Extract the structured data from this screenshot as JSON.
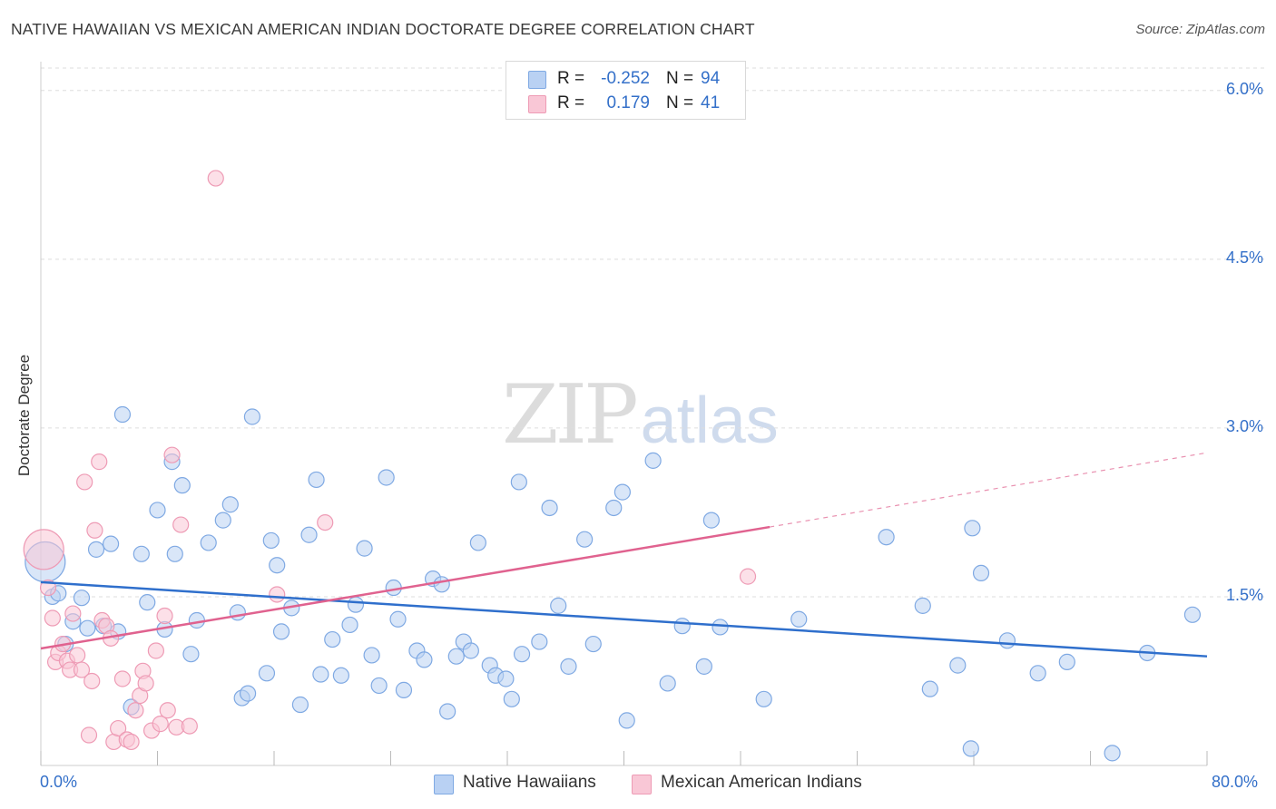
{
  "header": {
    "title": "NATIVE HAWAIIAN VS MEXICAN AMERICAN INDIAN DOCTORATE DEGREE CORRELATION CHART",
    "source": "Source: ZipAtlas.com"
  },
  "watermark": {
    "zip": "ZIP",
    "atlas": "atlas"
  },
  "legend": {
    "rows": [
      {
        "r_label": "R =",
        "r_value": "-0.252",
        "n_label": "N =",
        "n_value": "94"
      },
      {
        "r_label": "R =",
        "r_value": "0.179",
        "n_label": "N =",
        "n_value": "41"
      }
    ]
  },
  "bottom_legend": [
    "Native Hawaiians",
    "Mexican American Indians"
  ],
  "colors": {
    "blue_fill": "#b9d1f3",
    "blue_stroke": "#7fa9e3",
    "blue_line": "#2f6fcc",
    "pink_fill": "#f9c7d6",
    "pink_stroke": "#ee9bb5",
    "pink_line": "#e0628f",
    "axis_text": "#3470c9",
    "grid": "#dddddd"
  },
  "chart_data": {
    "type": "scatter",
    "title": "NATIVE HAWAIIAN VS MEXICAN AMERICAN INDIAN DOCTORATE DEGREE CORRELATION CHART",
    "xlabel": "",
    "ylabel": "Doctorate Degree",
    "xlim": [
      0,
      80
    ],
    "ylim": [
      0,
      6.2
    ],
    "x_tick_labels": [
      "0.0%",
      "80.0%"
    ],
    "y_ticks": [
      1.5,
      3.0,
      4.5,
      6.0
    ],
    "y_tick_labels": [
      "1.5%",
      "3.0%",
      "4.5%",
      "6.0%"
    ],
    "grid": "horizontal dashed",
    "legend_position": "top-center",
    "series": [
      {
        "name": "Native Hawaiians",
        "r": -0.252,
        "n": 94,
        "trend": {
          "x": [
            0,
            80
          ],
          "y": [
            1.63,
            0.97
          ],
          "dashed_from_x": null
        },
        "points": [
          [
            0.3,
            1.81,
            "big"
          ],
          [
            0.8,
            1.5
          ],
          [
            1.2,
            1.53
          ],
          [
            1.7,
            1.08
          ],
          [
            2.2,
            1.28
          ],
          [
            2.8,
            1.49
          ],
          [
            3.2,
            1.22
          ],
          [
            3.8,
            1.92
          ],
          [
            4.3,
            1.24
          ],
          [
            4.8,
            1.97
          ],
          [
            5.3,
            1.19
          ],
          [
            5.6,
            3.12
          ],
          [
            6.2,
            0.52
          ],
          [
            6.9,
            1.88
          ],
          [
            7.3,
            1.45
          ],
          [
            8.0,
            2.27
          ],
          [
            8.5,
            1.21
          ],
          [
            9.0,
            2.7
          ],
          [
            9.2,
            1.88
          ],
          [
            9.7,
            2.49
          ],
          [
            10.3,
            0.99
          ],
          [
            10.7,
            1.29
          ],
          [
            11.5,
            1.98
          ],
          [
            12.5,
            2.18
          ],
          [
            13.0,
            2.32
          ],
          [
            13.5,
            1.36
          ],
          [
            13.8,
            0.6
          ],
          [
            14.2,
            0.64
          ],
          [
            14.5,
            3.1
          ],
          [
            15.5,
            0.82
          ],
          [
            15.8,
            2.0
          ],
          [
            16.2,
            1.78
          ],
          [
            16.5,
            1.19
          ],
          [
            17.2,
            1.4
          ],
          [
            17.8,
            0.54
          ],
          [
            18.4,
            2.05
          ],
          [
            18.9,
            2.54
          ],
          [
            19.2,
            0.81
          ],
          [
            20.0,
            1.12
          ],
          [
            20.6,
            0.8
          ],
          [
            21.2,
            1.25
          ],
          [
            21.6,
            1.43
          ],
          [
            22.2,
            1.93
          ],
          [
            22.7,
            0.98
          ],
          [
            23.2,
            0.71
          ],
          [
            23.7,
            2.56
          ],
          [
            24.2,
            1.58
          ],
          [
            24.5,
            1.3
          ],
          [
            24.9,
            0.67
          ],
          [
            25.8,
            1.02
          ],
          [
            26.3,
            0.94
          ],
          [
            26.9,
            1.66
          ],
          [
            27.5,
            1.61
          ],
          [
            27.9,
            0.48
          ],
          [
            28.5,
            0.97
          ],
          [
            29.0,
            1.1
          ],
          [
            29.5,
            1.02
          ],
          [
            30.0,
            1.98
          ],
          [
            30.8,
            0.89
          ],
          [
            31.2,
            0.8
          ],
          [
            31.9,
            0.77
          ],
          [
            32.3,
            0.59
          ],
          [
            32.8,
            2.52
          ],
          [
            33.0,
            0.99
          ],
          [
            34.2,
            1.1
          ],
          [
            34.9,
            2.29
          ],
          [
            35.5,
            1.42
          ],
          [
            36.2,
            0.88
          ],
          [
            37.3,
            2.01
          ],
          [
            37.9,
            1.08
          ],
          [
            39.3,
            2.29
          ],
          [
            39.9,
            2.43
          ],
          [
            40.2,
            0.4
          ],
          [
            42.0,
            2.71
          ],
          [
            43.0,
            0.73
          ],
          [
            44.0,
            1.24
          ],
          [
            45.5,
            0.88
          ],
          [
            46.0,
            2.18
          ],
          [
            46.6,
            1.23
          ],
          [
            49.6,
            0.59
          ],
          [
            52.0,
            1.3
          ],
          [
            58.0,
            2.03
          ],
          [
            60.5,
            1.42
          ],
          [
            61.0,
            0.68
          ],
          [
            62.9,
            0.89
          ],
          [
            63.8,
            0.15
          ],
          [
            63.9,
            2.11
          ],
          [
            64.5,
            1.71
          ],
          [
            66.3,
            1.11
          ],
          [
            68.4,
            0.82
          ],
          [
            70.4,
            0.92
          ],
          [
            73.5,
            0.11
          ],
          [
            75.9,
            1.0
          ],
          [
            79.0,
            1.34
          ]
        ]
      },
      {
        "name": "Mexican American Indians",
        "r": 0.179,
        "n": 41,
        "trend": {
          "x": [
            0,
            50,
            80
          ],
          "y": [
            1.04,
            2.12,
            2.78
          ],
          "dashed_from_x": 50
        },
        "points": [
          [
            0.2,
            1.92,
            "big"
          ],
          [
            0.5,
            1.58
          ],
          [
            0.8,
            1.31
          ],
          [
            1.0,
            0.92
          ],
          [
            1.2,
            1.0
          ],
          [
            1.5,
            1.08
          ],
          [
            1.8,
            0.93
          ],
          [
            2.0,
            0.85
          ],
          [
            2.2,
            1.35
          ],
          [
            2.5,
            0.98
          ],
          [
            2.8,
            0.85
          ],
          [
            3.0,
            2.52
          ],
          [
            3.3,
            0.27
          ],
          [
            3.5,
            0.75
          ],
          [
            3.7,
            2.09
          ],
          [
            4.0,
            2.7
          ],
          [
            4.2,
            1.29
          ],
          [
            4.5,
            1.24
          ],
          [
            4.8,
            1.13
          ],
          [
            5.0,
            0.21
          ],
          [
            5.3,
            0.33
          ],
          [
            5.6,
            0.77
          ],
          [
            5.9,
            0.23
          ],
          [
            6.2,
            0.21
          ],
          [
            6.5,
            0.49
          ],
          [
            6.8,
            0.62
          ],
          [
            7.0,
            0.84
          ],
          [
            7.2,
            0.73
          ],
          [
            7.6,
            0.31
          ],
          [
            7.9,
            1.02
          ],
          [
            8.2,
            0.37
          ],
          [
            8.5,
            1.33
          ],
          [
            8.7,
            0.49
          ],
          [
            9.0,
            2.76
          ],
          [
            9.3,
            0.34
          ],
          [
            9.6,
            2.14
          ],
          [
            10.2,
            0.35
          ],
          [
            12.0,
            5.22
          ],
          [
            16.2,
            1.52
          ],
          [
            19.5,
            2.16
          ],
          [
            48.5,
            1.68
          ]
        ]
      }
    ]
  }
}
